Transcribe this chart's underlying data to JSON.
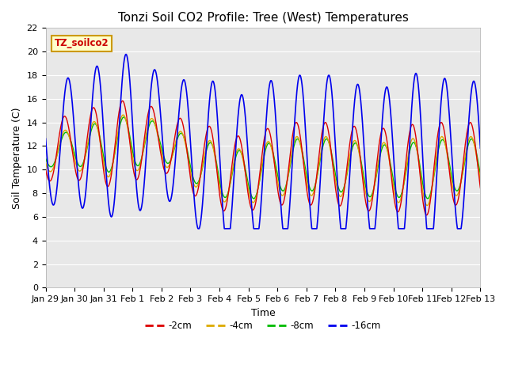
{
  "title": "Tonzi Soil CO2 Profile: Tree (West) Temperatures",
  "ylabel": "Soil Temperature (C)",
  "xlabel": "Time",
  "ylim": [
    0,
    22
  ],
  "legend_label": "TZ_soilco2",
  "series_labels": [
    "-2cm",
    "-4cm",
    "-8cm",
    "-16cm"
  ],
  "series_colors": [
    "#dd0000",
    "#ddaa00",
    "#00bb00",
    "#0000ee"
  ],
  "tick_labels": [
    "Jan 29",
    "Jan 30",
    "Jan 31",
    "Feb 1",
    "Feb 2",
    "Feb 3",
    "Feb 4",
    "Feb 5",
    "Feb 6",
    "Feb 7",
    "Feb 8",
    "Feb 9",
    "Feb 10",
    "Feb 11",
    "Feb 12",
    "Feb 13"
  ],
  "title_fontsize": 11,
  "axis_label_fontsize": 9,
  "tick_fontsize": 8
}
